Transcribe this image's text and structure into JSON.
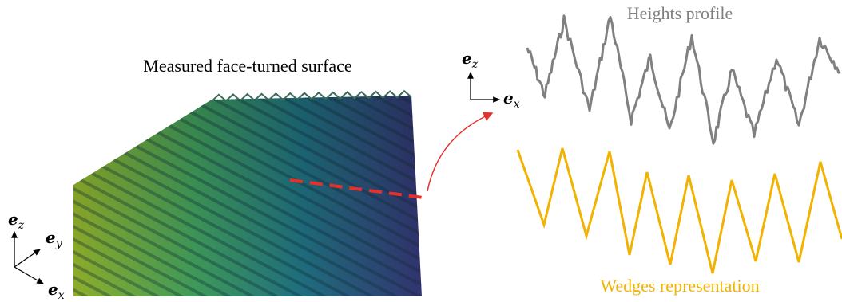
{
  "surface_title": "Measured face-turned surface",
  "heights_title": "Heights profile",
  "wedges_title": "Wedges representation",
  "colors": {
    "heights": "#808080",
    "wedges": "#f2b200",
    "cut_line": "#e8302a",
    "arrow": "#e8302a",
    "surface_dark": "#3a3a7a",
    "surface_mid": "#1f7f7a",
    "surface_light": "#8fae2a"
  },
  "axes_left": {
    "z": "e",
    "z_sub": "z",
    "y": "e",
    "y_sub": "y",
    "x": "e",
    "x_sub": "x"
  },
  "axes_right": {
    "z": "e",
    "z_sub": "z",
    "x": "e",
    "x_sub": "x"
  }
}
